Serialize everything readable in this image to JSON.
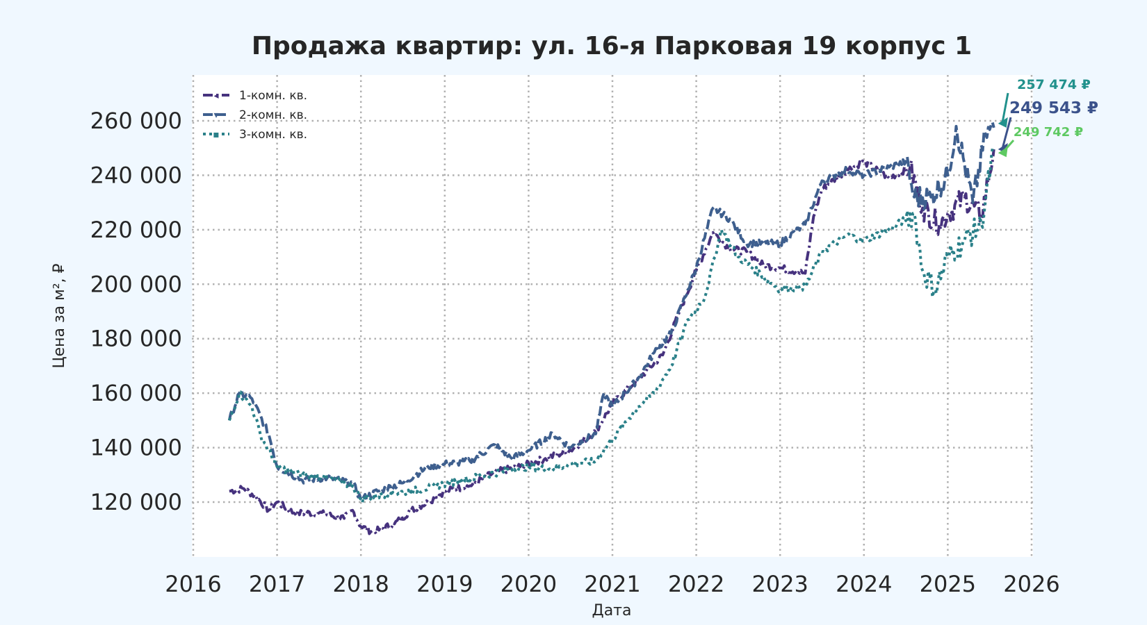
{
  "chart_data": {
    "type": "line",
    "title": "Продажа квартир: ул. 16-я Парковая 19 корпус 1",
    "xlabel": "Дата",
    "ylabel": "Цена за м², ₽",
    "xlim": [
      2016,
      2026
    ],
    "ylim": [
      100000,
      270000
    ],
    "x_ticks": [
      "2016",
      "2017",
      "2018",
      "2019",
      "2020",
      "2021",
      "2022",
      "2023",
      "2024",
      "2025",
      "2026"
    ],
    "y_ticks": [
      "120 000",
      "140 000",
      "160 000",
      "180 000",
      "200 000",
      "220 000",
      "240 000",
      "260 000"
    ],
    "grid": true,
    "legend_position": "top-left",
    "series": [
      {
        "name": "1-комн. кв.",
        "color": "#46327e",
        "style": "dashdot",
        "x": [
          2016.43,
          2016.6,
          2016.75,
          2016.9,
          2017.0,
          2017.2,
          2017.5,
          2017.8,
          2017.9,
          2018.0,
          2018.15,
          2018.4,
          2018.6,
          2018.8,
          2019.0,
          2019.3,
          2019.6,
          2019.9,
          2020.2,
          2020.5,
          2020.8,
          2021.0,
          2021.2,
          2021.4,
          2021.6,
          2021.8,
          2022.0,
          2022.2,
          2022.4,
          2022.6,
          2022.8,
          2023.0,
          2023.3,
          2023.4,
          2023.5,
          2023.8,
          2024.0,
          2024.3,
          2024.55,
          2024.7,
          2024.9,
          2025.0,
          2025.2,
          2025.4,
          2025.55
        ],
        "y": [
          124000,
          125000,
          122000,
          117000,
          120000,
          116000,
          116000,
          114000,
          117000,
          111000,
          109000,
          112000,
          117000,
          120000,
          124000,
          126000,
          131000,
          133000,
          136000,
          139000,
          146000,
          156000,
          162000,
          168000,
          174000,
          190000,
          205000,
          219000,
          213000,
          212000,
          207000,
          206000,
          204000,
          225000,
          235000,
          242000,
          245000,
          239000,
          243000,
          228000,
          222000,
          226000,
          232000,
          225000,
          249543
        ]
      },
      {
        "name": "2-комн. кв.",
        "color": "#3e5f8e",
        "style": "dashed",
        "x": [
          2016.43,
          2016.55,
          2016.7,
          2016.9,
          2017.0,
          2017.3,
          2017.6,
          2017.9,
          2018.0,
          2018.2,
          2018.5,
          2018.8,
          2019.0,
          2019.3,
          2019.6,
          2019.8,
          2020.0,
          2020.3,
          2020.5,
          2020.8,
          2020.9,
          2021.0,
          2021.3,
          2021.5,
          2021.7,
          2021.9,
          2022.0,
          2022.2,
          2022.4,
          2022.6,
          2022.8,
          2023.0,
          2023.3,
          2023.5,
          2023.8,
          2024.0,
          2024.3,
          2024.5,
          2024.6,
          2024.8,
          2025.0,
          2025.1,
          2025.3,
          2025.45,
          2025.55
        ],
        "y": [
          150000,
          160000,
          158000,
          145000,
          133000,
          128000,
          129000,
          127000,
          121000,
          124000,
          127000,
          133000,
          134000,
          135000,
          141000,
          136000,
          139000,
          145000,
          140000,
          145000,
          160000,
          155000,
          165000,
          175000,
          182000,
          198000,
          206000,
          228000,
          224000,
          215000,
          215000,
          215000,
          222000,
          238000,
          242000,
          240000,
          243000,
          245000,
          232000,
          232000,
          240000,
          258000,
          230000,
          255000,
          257474
        ]
      },
      {
        "name": "3-комн. кв.",
        "color": "#2a8089",
        "style": "dotted",
        "x": [
          2016.43,
          2016.55,
          2016.7,
          2016.8,
          2017.0,
          2017.3,
          2017.6,
          2017.9,
          2018.0,
          2018.3,
          2018.6,
          2018.9,
          2019.2,
          2019.5,
          2019.8,
          2020.0,
          2020.3,
          2020.5,
          2020.8,
          2021.0,
          2021.3,
          2021.5,
          2021.7,
          2021.9,
          2022.1,
          2022.3,
          2022.5,
          2022.8,
          2023.0,
          2023.3,
          2023.5,
          2023.8,
          2024.0,
          2024.3,
          2024.6,
          2024.7,
          2024.85,
          2025.0,
          2025.2,
          2025.4,
          2025.55
        ],
        "y": [
          150000,
          160000,
          155000,
          145000,
          133000,
          130000,
          129000,
          126000,
          121000,
          123000,
          124000,
          126000,
          128000,
          130000,
          132000,
          133000,
          132000,
          134000,
          135000,
          143000,
          155000,
          160000,
          170000,
          187000,
          195000,
          220000,
          210000,
          203000,
          198000,
          199000,
          212000,
          218000,
          216000,
          220000,
          226000,
          205000,
          198000,
          210000,
          216000,
          222000,
          249742
        ]
      }
    ],
    "annotations": [
      {
        "text": "257 474 ₽",
        "color": "#21918c"
      },
      {
        "text": "249 543 ₽",
        "color": "#3b528b"
      },
      {
        "text": "249 742 ₽",
        "color": "#5ec962"
      }
    ]
  }
}
